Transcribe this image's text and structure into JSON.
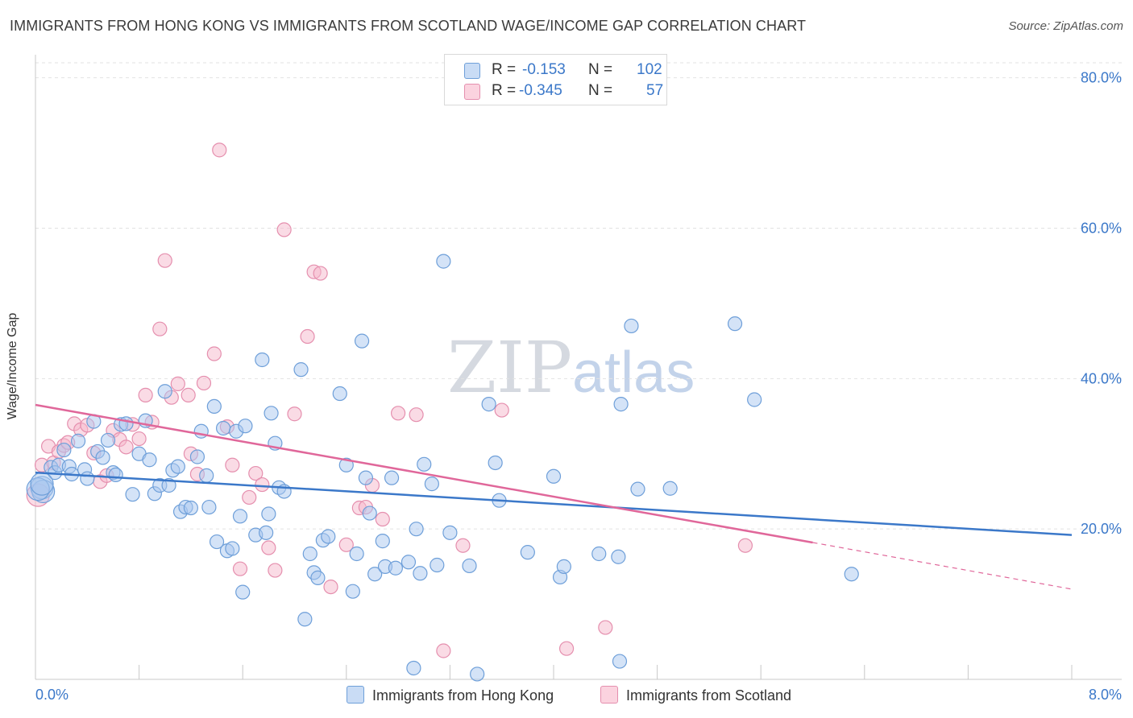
{
  "title": "IMMIGRANTS FROM HONG KONG VS IMMIGRANTS FROM SCOTLAND WAGE/INCOME GAP CORRELATION CHART",
  "source": "Source: ZipAtlas.com",
  "watermark": {
    "zip": "ZIP",
    "atlas": "atlas"
  },
  "colors": {
    "blue": "#3b78c9",
    "blue_fill": "#a9c8f0",
    "pink": "#e0679a",
    "pink_fill": "#f6b8cc",
    "grid": "#e2e2e2"
  },
  "legend": {
    "rows": [
      {
        "r_label": "R =",
        "r_value": "-0.153",
        "n_label": "N =",
        "n_value": "102"
      },
      {
        "r_label": "R =",
        "r_value": "-0.345",
        "n_label": "N =",
        "n_value": "57"
      }
    ]
  },
  "chart_data": {
    "type": "scatter",
    "title": "IMMIGRANTS FROM HONG KONG VS IMMIGRANTS FROM SCOTLAND WAGE/INCOME GAP CORRELATION CHART",
    "xlabel": "",
    "ylabel": "Wage/Income Gap",
    "xlim": [
      0,
      8
    ],
    "ylim": [
      0,
      82
    ],
    "x_tick_labels": [
      "0.0%",
      "8.0%"
    ],
    "y_ticks": [
      20,
      40,
      60,
      80
    ],
    "y_tick_labels": [
      "20.0%",
      "40.0%",
      "60.0%",
      "80.0%"
    ],
    "grid": true,
    "legend_position": "top-center",
    "series": [
      {
        "name": "Immigrants from Hong Kong",
        "color": "#3b78c9",
        "trend": {
          "x": [
            0,
            8
          ],
          "y": [
            27.5,
            19.2
          ]
        },
        "points": [
          [
            0.05,
            25.5
          ],
          [
            0.06,
            25.0
          ],
          [
            0.12,
            28.2
          ],
          [
            0.15,
            27.5
          ],
          [
            0.18,
            28.5
          ],
          [
            0.22,
            30.5
          ],
          [
            0.26,
            28.3
          ],
          [
            0.28,
            27.3
          ],
          [
            0.33,
            31.7
          ],
          [
            0.38,
            27.9
          ],
          [
            0.4,
            26.7
          ],
          [
            0.45,
            34.3
          ],
          [
            0.48,
            30.3
          ],
          [
            0.52,
            29.5
          ],
          [
            0.56,
            31.8
          ],
          [
            0.6,
            27.5
          ],
          [
            0.62,
            27.2
          ],
          [
            0.66,
            33.9
          ],
          [
            0.7,
            34.0
          ],
          [
            0.75,
            24.6
          ],
          [
            0.8,
            30.0
          ],
          [
            0.85,
            34.4
          ],
          [
            0.88,
            29.2
          ],
          [
            0.92,
            24.7
          ],
          [
            0.96,
            25.8
          ],
          [
            1.0,
            38.3
          ],
          [
            1.03,
            25.8
          ],
          [
            1.06,
            27.8
          ],
          [
            1.1,
            28.3
          ],
          [
            1.12,
            22.3
          ],
          [
            1.16,
            22.9
          ],
          [
            1.2,
            22.8
          ],
          [
            1.25,
            29.6
          ],
          [
            1.28,
            33.0
          ],
          [
            1.32,
            27.1
          ],
          [
            1.34,
            22.9
          ],
          [
            1.38,
            36.3
          ],
          [
            1.4,
            18.3
          ],
          [
            1.45,
            33.4
          ],
          [
            1.48,
            17.1
          ],
          [
            1.52,
            17.4
          ],
          [
            1.55,
            33.0
          ],
          [
            1.58,
            21.7
          ],
          [
            1.6,
            11.6
          ],
          [
            1.62,
            33.7
          ],
          [
            1.7,
            19.2
          ],
          [
            1.75,
            42.5
          ],
          [
            1.78,
            19.5
          ],
          [
            1.8,
            22.0
          ],
          [
            1.82,
            35.4
          ],
          [
            1.85,
            31.4
          ],
          [
            1.88,
            25.5
          ],
          [
            1.92,
            25.0
          ],
          [
            2.05,
            41.2
          ],
          [
            2.08,
            8.0
          ],
          [
            2.12,
            16.7
          ],
          [
            2.15,
            14.2
          ],
          [
            2.18,
            13.5
          ],
          [
            2.22,
            18.5
          ],
          [
            2.26,
            19.0
          ],
          [
            2.35,
            38.0
          ],
          [
            2.4,
            28.5
          ],
          [
            2.45,
            11.7
          ],
          [
            2.48,
            16.7
          ],
          [
            2.52,
            45.0
          ],
          [
            2.55,
            26.8
          ],
          [
            2.58,
            22.1
          ],
          [
            2.62,
            14.0
          ],
          [
            2.68,
            18.4
          ],
          [
            2.7,
            15.0
          ],
          [
            2.75,
            26.8
          ],
          [
            2.78,
            14.8
          ],
          [
            2.88,
            15.6
          ],
          [
            2.94,
            20.0
          ],
          [
            2.97,
            14.1
          ],
          [
            3.0,
            28.6
          ],
          [
            3.06,
            26.0
          ],
          [
            3.1,
            15.2
          ],
          [
            3.15,
            55.6
          ],
          [
            3.2,
            19.5
          ],
          [
            3.35,
            15.1
          ],
          [
            3.5,
            36.6
          ],
          [
            3.55,
            28.8
          ],
          [
            3.58,
            23.8
          ],
          [
            3.8,
            16.9
          ],
          [
            4.05,
            13.6
          ],
          [
            4.08,
            15.0
          ],
          [
            4.0,
            27.0
          ],
          [
            4.35,
            16.7
          ],
          [
            4.52,
            36.6
          ],
          [
            4.6,
            47.0
          ],
          [
            4.65,
            25.3
          ],
          [
            4.9,
            25.4
          ],
          [
            5.4,
            47.3
          ],
          [
            5.55,
            37.2
          ],
          [
            6.3,
            14.0
          ],
          [
            2.92,
            1.5
          ],
          [
            3.41,
            0.7
          ],
          [
            4.51,
            2.4
          ],
          [
            4.5,
            16.3
          ],
          [
            0.02,
            25.3
          ],
          [
            0.05,
            26.0
          ]
        ]
      },
      {
        "name": "Immigrants from Scotland",
        "color": "#e0679a",
        "trend": {
          "x": [
            0,
            6.0
          ],
          "y": [
            36.5,
            18.2
          ]
        },
        "trend_dashed": {
          "x": [
            6.0,
            8
          ],
          "y": [
            18.2,
            12.0
          ]
        },
        "points": [
          [
            0.02,
            24.5
          ],
          [
            0.05,
            28.5
          ],
          [
            0.1,
            31.0
          ],
          [
            0.14,
            28.8
          ],
          [
            0.18,
            30.3
          ],
          [
            0.22,
            31.1
          ],
          [
            0.25,
            31.5
          ],
          [
            0.3,
            34.0
          ],
          [
            0.35,
            33.2
          ],
          [
            0.4,
            33.8
          ],
          [
            0.45,
            30.1
          ],
          [
            0.5,
            26.3
          ],
          [
            0.55,
            27.1
          ],
          [
            0.6,
            33.1
          ],
          [
            0.65,
            31.9
          ],
          [
            0.7,
            30.9
          ],
          [
            0.75,
            33.9
          ],
          [
            0.8,
            32.0
          ],
          [
            0.85,
            37.8
          ],
          [
            0.9,
            34.2
          ],
          [
            0.96,
            46.6
          ],
          [
            1.0,
            55.7
          ],
          [
            1.05,
            37.5
          ],
          [
            1.1,
            39.3
          ],
          [
            1.18,
            37.8
          ],
          [
            1.2,
            30.0
          ],
          [
            1.25,
            27.3
          ],
          [
            1.3,
            39.4
          ],
          [
            1.38,
            43.3
          ],
          [
            1.42,
            70.4
          ],
          [
            1.48,
            33.6
          ],
          [
            1.52,
            28.5
          ],
          [
            1.58,
            14.7
          ],
          [
            1.65,
            24.2
          ],
          [
            1.7,
            27.4
          ],
          [
            1.75,
            25.9
          ],
          [
            1.8,
            17.5
          ],
          [
            1.85,
            14.5
          ],
          [
            1.92,
            59.8
          ],
          [
            2.0,
            35.3
          ],
          [
            2.1,
            45.6
          ],
          [
            2.15,
            54.2
          ],
          [
            2.2,
            54.0
          ],
          [
            2.28,
            12.3
          ],
          [
            2.4,
            17.9
          ],
          [
            2.5,
            22.8
          ],
          [
            2.55,
            22.9
          ],
          [
            2.6,
            25.8
          ],
          [
            2.68,
            21.3
          ],
          [
            2.8,
            35.4
          ],
          [
            2.94,
            35.2
          ],
          [
            3.15,
            3.8
          ],
          [
            3.3,
            17.8
          ],
          [
            3.6,
            35.8
          ],
          [
            4.1,
            4.1
          ],
          [
            4.4,
            6.9
          ],
          [
            5.48,
            17.8
          ]
        ]
      }
    ]
  },
  "bottom_legend": [
    {
      "label": "Immigrants from Hong Kong"
    },
    {
      "label": "Immigrants from Scotland"
    }
  ]
}
